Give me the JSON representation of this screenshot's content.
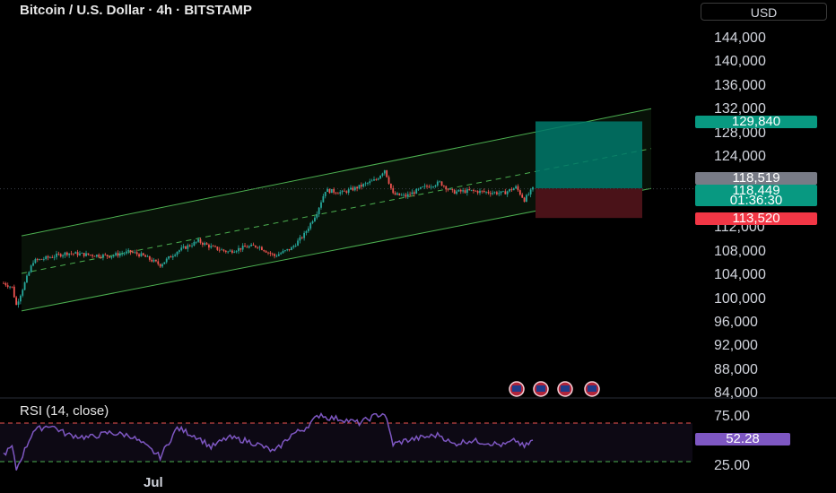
{
  "header": {
    "title": "Bitcoin / U.S. Dollar · 4h · BITSTAMP",
    "currency_label": "USD"
  },
  "price_axis": {
    "ticks": [
      "144,000",
      "140,000",
      "136,000",
      "132,000",
      "128,000",
      "124,000",
      "112,000",
      "108,000",
      "104,000",
      "100,000",
      "96,000",
      "92,000",
      "88,000",
      "84,000"
    ],
    "take_profit_label": "129,840",
    "reference_label": "118,519",
    "last_price_label": "118,449",
    "countdown_label": "01:36:30",
    "stop_loss_label": "113,520"
  },
  "rsi": {
    "title": "RSI (14, close)",
    "ticks": [
      "75.00",
      "25.00"
    ],
    "value_label": "52.28"
  },
  "time_axis": {
    "labels": [
      "Jul"
    ]
  },
  "colors": {
    "up": "#26a69a",
    "down": "#ef5350",
    "channel": "#4caf50",
    "rsi_line": "#7e57c2",
    "tp_zone": "#00796b",
    "sl_zone": "#4a1218",
    "label_tp": "#089981",
    "label_ref": "#787b86",
    "label_sl": "#f23645"
  },
  "chart_data": {
    "type": "candlestick",
    "price_range": [
      84000,
      146000
    ],
    "rsi_range": [
      0,
      100
    ],
    "channel": {
      "start": {
        "price_upper": 110500,
        "price_lower": 97800
      },
      "end": {
        "price_upper": 132000,
        "price_lower": 118500
      }
    },
    "position": {
      "entry": 118519,
      "take_profit": 129840,
      "stop_loss": 113520
    },
    "close_path": [
      {
        "i": 0,
        "p": 102500
      },
      {
        "i": 4,
        "p": 101800
      },
      {
        "i": 6,
        "p": 98800
      },
      {
        "i": 10,
        "p": 102500
      },
      {
        "i": 14,
        "p": 106200
      },
      {
        "i": 22,
        "p": 106900
      },
      {
        "i": 30,
        "p": 107600
      },
      {
        "i": 40,
        "p": 107300
      },
      {
        "i": 50,
        "p": 107100
      },
      {
        "i": 60,
        "p": 107800
      },
      {
        "i": 66,
        "p": 107100
      },
      {
        "i": 74,
        "p": 105600
      },
      {
        "i": 82,
        "p": 107900
      },
      {
        "i": 92,
        "p": 109600
      },
      {
        "i": 98,
        "p": 108600
      },
      {
        "i": 106,
        "p": 107800
      },
      {
        "i": 114,
        "p": 108600
      },
      {
        "i": 120,
        "p": 108800
      },
      {
        "i": 128,
        "p": 107100
      },
      {
        "i": 136,
        "p": 108400
      },
      {
        "i": 142,
        "p": 110700
      },
      {
        "i": 148,
        "p": 114500
      },
      {
        "i": 152,
        "p": 118200
      },
      {
        "i": 160,
        "p": 117800
      },
      {
        "i": 168,
        "p": 118800
      },
      {
        "i": 176,
        "p": 120000
      },
      {
        "i": 180,
        "p": 121700
      },
      {
        "i": 184,
        "p": 117500
      },
      {
        "i": 190,
        "p": 117200
      },
      {
        "i": 198,
        "p": 118600
      },
      {
        "i": 206,
        "p": 119500
      },
      {
        "i": 212,
        "p": 117900
      },
      {
        "i": 220,
        "p": 118100
      },
      {
        "i": 228,
        "p": 117900
      },
      {
        "i": 236,
        "p": 117700
      },
      {
        "i": 242,
        "p": 118700
      },
      {
        "i": 246,
        "p": 116600
      },
      {
        "i": 250,
        "p": 118449
      }
    ],
    "rsi_path": [
      {
        "i": 0,
        "v": 38
      },
      {
        "i": 4,
        "v": 45
      },
      {
        "i": 6,
        "v": 22
      },
      {
        "i": 14,
        "v": 62
      },
      {
        "i": 22,
        "v": 68
      },
      {
        "i": 30,
        "v": 58
      },
      {
        "i": 40,
        "v": 55
      },
      {
        "i": 50,
        "v": 60
      },
      {
        "i": 60,
        "v": 57
      },
      {
        "i": 66,
        "v": 48
      },
      {
        "i": 74,
        "v": 35
      },
      {
        "i": 82,
        "v": 65
      },
      {
        "i": 92,
        "v": 55
      },
      {
        "i": 98,
        "v": 45
      },
      {
        "i": 106,
        "v": 55
      },
      {
        "i": 114,
        "v": 52
      },
      {
        "i": 120,
        "v": 48
      },
      {
        "i": 128,
        "v": 40
      },
      {
        "i": 136,
        "v": 58
      },
      {
        "i": 142,
        "v": 64
      },
      {
        "i": 150,
        "v": 80
      },
      {
        "i": 152,
        "v": 76
      },
      {
        "i": 160,
        "v": 74
      },
      {
        "i": 168,
        "v": 70
      },
      {
        "i": 176,
        "v": 78
      },
      {
        "i": 180,
        "v": 80
      },
      {
        "i": 184,
        "v": 48
      },
      {
        "i": 190,
        "v": 52
      },
      {
        "i": 198,
        "v": 55
      },
      {
        "i": 206,
        "v": 58
      },
      {
        "i": 212,
        "v": 48
      },
      {
        "i": 220,
        "v": 52
      },
      {
        "i": 228,
        "v": 50
      },
      {
        "i": 236,
        "v": 47
      },
      {
        "i": 242,
        "v": 52
      },
      {
        "i": 246,
        "v": 45
      },
      {
        "i": 250,
        "v": 52.28
      }
    ]
  }
}
